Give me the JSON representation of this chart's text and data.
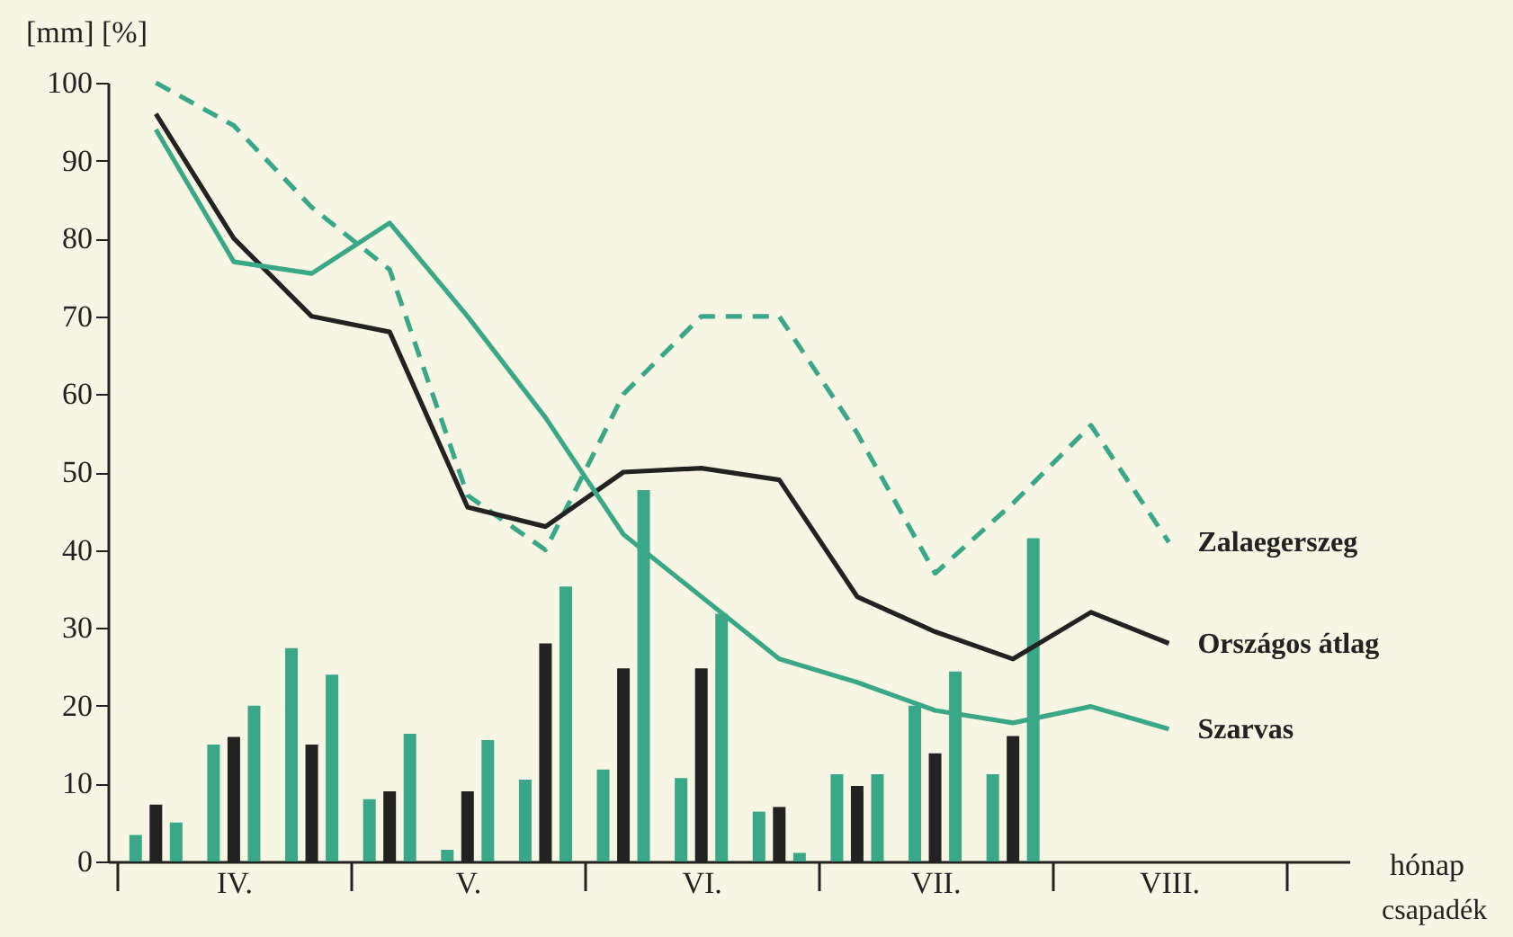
{
  "chart_data": {
    "type": "line",
    "ylabel": "[mm] [%]",
    "xlabel": "hónap",
    "annotations": [
      "csapadék"
    ],
    "categories": [
      null,
      "IV.",
      null,
      null,
      "V.",
      null,
      null,
      "VI.",
      null,
      null,
      "VII.",
      null,
      null,
      "VIII.",
      null
    ],
    "ylim": [
      0,
      100
    ],
    "yticks": [
      0,
      10,
      20,
      30,
      40,
      50,
      60,
      70,
      80,
      90,
      100
    ],
    "series": [
      {
        "type": "bar",
        "color": "#3aa888",
        "values": [
          3.4,
          15,
          27.4,
          8,
          1.5,
          10.5,
          11.8,
          10.7,
          6.4,
          11.2,
          20,
          11.2,
          null,
          null,
          null
        ]
      },
      {
        "type": "bar",
        "color": "#222222",
        "values": [
          7.3,
          16,
          15,
          9,
          9,
          28,
          24.8,
          24.8,
          7,
          9.7,
          13.9,
          16.1,
          null,
          null,
          null
        ]
      },
      {
        "type": "bar",
        "color": "#3aa888",
        "values": [
          5,
          20,
          24,
          16.4,
          15.6,
          35.3,
          47.7,
          31.8,
          1.1,
          11.2,
          24.4,
          41.5,
          null,
          null,
          null
        ]
      },
      {
        "name": "Zalaegerszeg",
        "color": "#3aa888",
        "line_style": "dashed",
        "values": [
          100,
          94.5,
          84,
          76,
          47,
          40,
          60,
          70,
          70,
          55,
          37,
          46,
          56,
          41,
          null
        ]
      },
      {
        "name": "Országos átlag",
        "color": "#222222",
        "values": [
          96,
          80,
          70,
          68,
          45.5,
          43,
          50,
          50.5,
          49,
          34,
          29.5,
          26,
          32,
          28,
          null
        ]
      },
      {
        "name": "Szarvas",
        "color": "#3aa888",
        "values": [
          94,
          77,
          75.5,
          82,
          70,
          57,
          42,
          34,
          26,
          23,
          19.4,
          17.8,
          19.9,
          17,
          null
        ]
      }
    ]
  }
}
